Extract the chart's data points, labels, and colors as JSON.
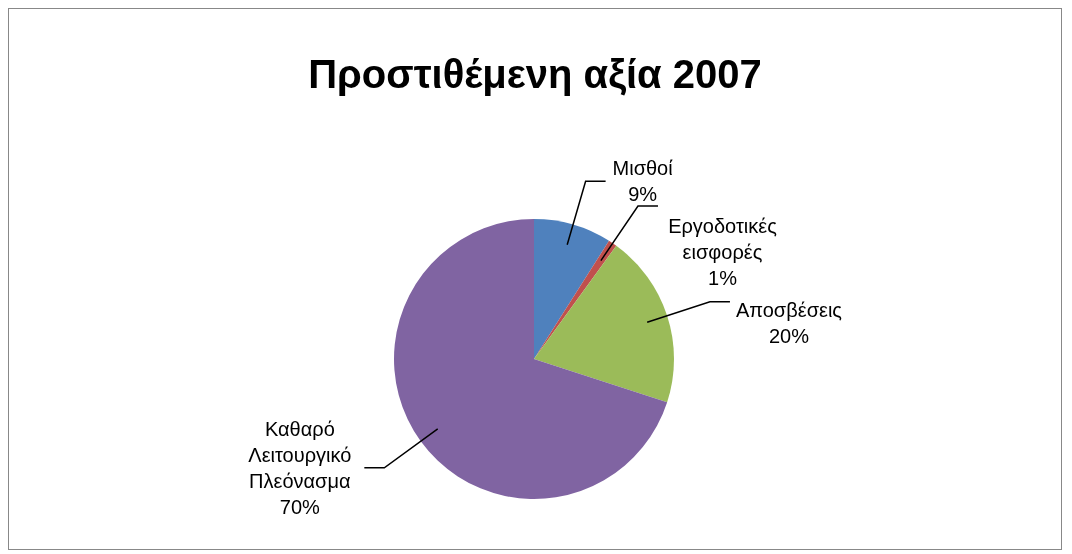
{
  "chart_data": {
    "type": "pie",
    "title": "Προστιθέμενη αξία 2007",
    "categories": [
      "Μισθοί",
      "Εργοδοτικές εισφορές",
      "Αποσβέσεις",
      "Καθαρό Λειτουργικό Πλεόνασμα"
    ],
    "values": [
      9,
      1,
      20,
      70
    ],
    "colors": [
      "#4f81bd",
      "#c0504d",
      "#9bbb59",
      "#8064a2"
    ],
    "value_labels": [
      "9%",
      "1%",
      "20%",
      "70%"
    ],
    "legend": false
  }
}
